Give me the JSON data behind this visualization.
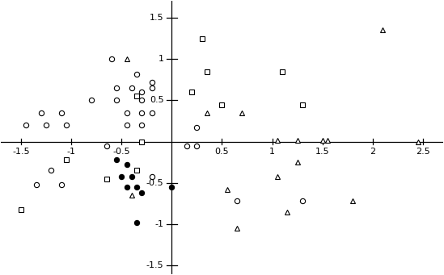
{
  "circles": [
    [
      -1.45,
      0.2
    ],
    [
      -1.25,
      0.2
    ],
    [
      -1.05,
      0.2
    ],
    [
      -1.3,
      0.35
    ],
    [
      -1.1,
      0.35
    ],
    [
      -0.8,
      0.5
    ],
    [
      -0.55,
      0.65
    ],
    [
      -0.4,
      0.65
    ],
    [
      -0.3,
      0.6
    ],
    [
      -0.2,
      0.65
    ],
    [
      -0.55,
      0.5
    ],
    [
      -0.3,
      0.5
    ],
    [
      -0.45,
      0.35
    ],
    [
      -0.3,
      0.35
    ],
    [
      -0.2,
      0.35
    ],
    [
      -0.45,
      0.2
    ],
    [
      -0.3,
      0.2
    ],
    [
      -0.6,
      1.0
    ],
    [
      -0.35,
      0.82
    ],
    [
      -0.2,
      0.72
    ],
    [
      0.25,
      0.17
    ],
    [
      0.25,
      -0.05
    ],
    [
      -0.65,
      -0.05
    ],
    [
      -0.2,
      -0.42
    ],
    [
      -1.2,
      -0.35
    ],
    [
      -1.35,
      -0.52
    ],
    [
      -1.1,
      -0.52
    ],
    [
      0.15,
      -0.05
    ],
    [
      0.65,
      -0.72
    ],
    [
      1.3,
      -0.72
    ]
  ],
  "squares": [
    [
      0.3,
      1.25
    ],
    [
      0.35,
      0.85
    ],
    [
      0.2,
      0.6
    ],
    [
      0.5,
      0.45
    ],
    [
      -0.35,
      0.55
    ],
    [
      -0.3,
      0.0
    ],
    [
      -0.35,
      -0.35
    ],
    [
      -0.65,
      -0.45
    ],
    [
      -1.05,
      -0.22
    ],
    [
      -1.5,
      -0.82
    ],
    [
      1.1,
      0.85
    ],
    [
      1.3,
      0.45
    ]
  ],
  "triangles": [
    [
      -0.45,
      1.0
    ],
    [
      0.35,
      0.35
    ],
    [
      0.7,
      0.35
    ],
    [
      1.05,
      0.02
    ],
    [
      1.25,
      0.02
    ],
    [
      1.5,
      0.02
    ],
    [
      1.55,
      0.02
    ],
    [
      2.1,
      1.35
    ],
    [
      1.25,
      -0.25
    ],
    [
      0.55,
      -0.58
    ],
    [
      1.05,
      -0.42
    ],
    [
      1.15,
      -0.85
    ],
    [
      0.65,
      -1.05
    ],
    [
      1.8,
      -0.72
    ],
    [
      2.45,
      0.0
    ],
    [
      -0.4,
      -0.65
    ]
  ],
  "filled_circles": [
    [
      -0.55,
      -0.22
    ],
    [
      -0.45,
      -0.28
    ],
    [
      -0.5,
      -0.42
    ],
    [
      -0.4,
      -0.42
    ],
    [
      -0.35,
      -0.55
    ],
    [
      -0.45,
      -0.55
    ],
    [
      -0.3,
      -0.62
    ],
    [
      0.0,
      -0.55
    ],
    [
      -0.35,
      -0.98
    ]
  ],
  "xlim": [
    -1.7,
    2.7
  ],
  "ylim": [
    -1.6,
    1.7
  ],
  "xticks": [
    -1.5,
    -1.0,
    -0.5,
    0.5,
    1.0,
    1.5,
    2.0,
    2.5
  ],
  "yticks": [
    -1.5,
    -1.0,
    -0.5,
    0.5,
    1.0,
    1.5
  ],
  "marker_size": 4.5,
  "linewidth": 0.9,
  "tick_fontsize": 8
}
